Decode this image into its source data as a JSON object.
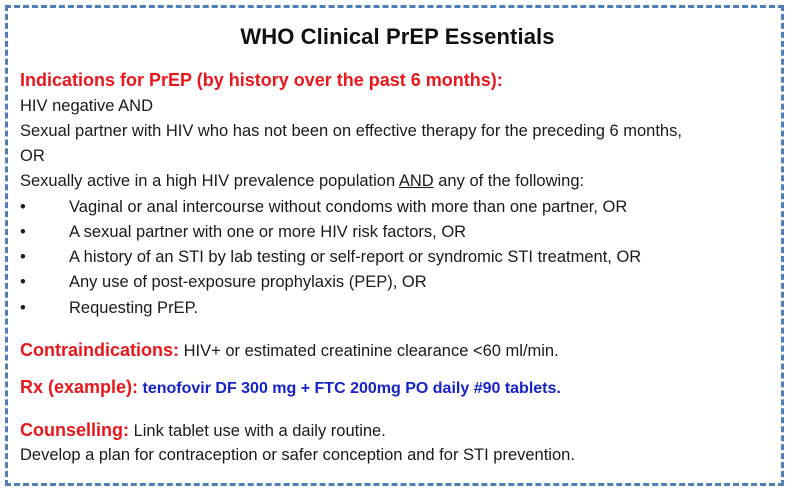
{
  "title": "WHO Clinical PrEP Essentials",
  "indications": {
    "heading": "Indications for PrEP (by history over the past 6 months):",
    "lines": [
      "HIV negative AND",
      "Sexual partner with HIV who has not been on effective therapy for the preceding 6 months,",
      "OR"
    ],
    "active_prefix": "Sexually active in a high HIV prevalence population ",
    "active_and": "AND",
    "active_suffix": " any of the following:",
    "bullet_glyph": "•",
    "bullets": [
      "Vaginal or anal intercourse without condoms with more than one partner, OR",
      "A sexual partner with one or more HIV risk factors, OR",
      "A history of an STI by lab testing or self-report or syndromic STI treatment, OR",
      "Any use of post-exposure prophylaxis (PEP), OR",
      "Requesting PrEP."
    ]
  },
  "contraindications": {
    "label": "Contraindications:",
    "text": " HIV+ or estimated creatinine clearance <60 ml/min."
  },
  "rx": {
    "label": "Rx (example):",
    "text": " tenofovir DF 300 mg + FTC 200mg PO daily #90 tablets."
  },
  "counselling": {
    "label": "Counselling:",
    "text": " Link tablet use with a daily routine.",
    "line2": "Develop a plan for contraception or safer conception and for STI prevention."
  },
  "colors": {
    "heading_red": "#e8171c",
    "rx_blue": "#1523c8",
    "border_blue": "#4f7fb9"
  }
}
